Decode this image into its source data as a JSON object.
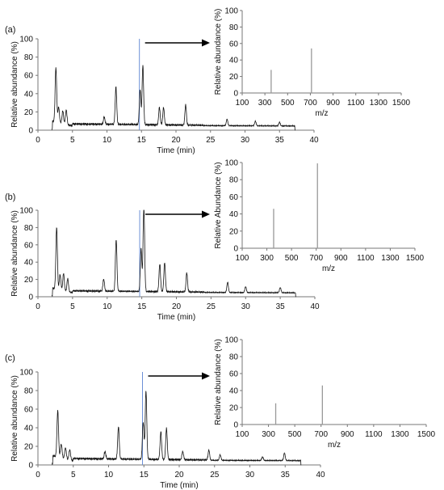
{
  "chart_data": [
    {
      "panel": "(a)",
      "type": "line",
      "xlabel": "Time (min)",
      "ylabel": "Relative abundance (%)",
      "xlim": [
        0,
        40
      ],
      "ylim": [
        0,
        100
      ],
      "xticks": [
        0,
        5,
        10,
        15,
        20,
        25,
        30,
        35,
        40
      ],
      "yticks": [
        0,
        20,
        40,
        60,
        80,
        100
      ],
      "marker_time": 14.7,
      "peaks": [
        {
          "x": 2.6,
          "y": 60
        },
        {
          "x": 3.0,
          "y": 17
        },
        {
          "x": 3.6,
          "y": 14
        },
        {
          "x": 4.1,
          "y": 16
        },
        {
          "x": 9.6,
          "y": 8
        },
        {
          "x": 11.3,
          "y": 41
        },
        {
          "x": 14.8,
          "y": 38
        },
        {
          "x": 15.2,
          "y": 65
        },
        {
          "x": 17.6,
          "y": 19
        },
        {
          "x": 18.2,
          "y": 19
        },
        {
          "x": 21.4,
          "y": 22
        },
        {
          "x": 27.4,
          "y": 7
        },
        {
          "x": 31.5,
          "y": 5
        },
        {
          "x": 35.0,
          "y": 4
        }
      ]
    },
    {
      "panel": "(a)",
      "type": "bar",
      "xlabel": "m/z",
      "ylabel": "Relative abundance (%)",
      "xlim": [
        100,
        1500
      ],
      "ylim": [
        0,
        100
      ],
      "xticks": [
        100,
        300,
        500,
        700,
        900,
        1100,
        1300,
        1500
      ],
      "yticks": [
        0,
        20,
        40,
        60,
        80,
        100
      ],
      "x": [
        355,
        710
      ],
      "values": [
        28,
        54
      ]
    },
    {
      "panel": "(b)",
      "type": "line",
      "xlabel": "Time (min)",
      "ylabel": "Relative abundance (%)",
      "xlim": [
        0,
        40
      ],
      "ylim": [
        0,
        100
      ],
      "xticks": [
        0,
        5,
        10,
        15,
        20,
        25,
        30,
        35,
        40
      ],
      "yticks": [
        0,
        20,
        40,
        60,
        80,
        100
      ],
      "marker_time": 14.7,
      "peaks": [
        {
          "x": 2.7,
          "y": 72
        },
        {
          "x": 3.2,
          "y": 18
        },
        {
          "x": 3.7,
          "y": 20
        },
        {
          "x": 4.3,
          "y": 15
        },
        {
          "x": 9.5,
          "y": 14
        },
        {
          "x": 11.3,
          "y": 60
        },
        {
          "x": 14.9,
          "y": 50
        },
        {
          "x": 15.3,
          "y": 100
        },
        {
          "x": 17.6,
          "y": 32
        },
        {
          "x": 18.3,
          "y": 34
        },
        {
          "x": 21.5,
          "y": 22
        },
        {
          "x": 27.4,
          "y": 12
        },
        {
          "x": 30.0,
          "y": 7
        },
        {
          "x": 35.0,
          "y": 6
        }
      ]
    },
    {
      "panel": "(b)",
      "type": "bar",
      "xlabel": "m/z",
      "ylabel": "Relative Abundance (%)",
      "xlim": [
        100,
        1500
      ],
      "ylim": [
        0,
        100
      ],
      "xticks": [
        100,
        300,
        500,
        700,
        900,
        1100,
        1300,
        1500
      ],
      "yticks": [
        0,
        20,
        40,
        60,
        80,
        100
      ],
      "x": [
        355,
        710
      ],
      "values": [
        46,
        99
      ]
    },
    {
      "panel": "(c)",
      "type": "line",
      "xlabel": "Time (min)",
      "ylabel": "Relative abundance (%)",
      "xlim": [
        0,
        40
      ],
      "ylim": [
        0,
        100
      ],
      "xticks": [
        0,
        5,
        10,
        15,
        20,
        25,
        30,
        35,
        40
      ],
      "yticks": [
        0,
        20,
        40,
        60,
        80,
        100
      ],
      "marker_time": 14.8,
      "peaks": [
        {
          "x": 2.8,
          "y": 50
        },
        {
          "x": 3.3,
          "y": 15
        },
        {
          "x": 3.9,
          "y": 12
        },
        {
          "x": 4.5,
          "y": 11
        },
        {
          "x": 9.5,
          "y": 8
        },
        {
          "x": 11.4,
          "y": 35
        },
        {
          "x": 14.9,
          "y": 40
        },
        {
          "x": 15.3,
          "y": 74
        },
        {
          "x": 17.4,
          "y": 30
        },
        {
          "x": 18.2,
          "y": 34
        },
        {
          "x": 20.5,
          "y": 9
        },
        {
          "x": 24.2,
          "y": 11
        },
        {
          "x": 25.8,
          "y": 6
        },
        {
          "x": 31.8,
          "y": 4
        },
        {
          "x": 34.9,
          "y": 8
        }
      ]
    },
    {
      "panel": "(c)",
      "type": "bar",
      "xlabel": "m/z",
      "ylabel": "Relative abundance (%)",
      "xlim": [
        100,
        1500
      ],
      "ylim": [
        0,
        100
      ],
      "xticks": [
        100,
        300,
        500,
        700,
        900,
        1100,
        1300,
        1500
      ],
      "yticks": [
        0,
        20,
        40,
        60,
        80,
        100
      ],
      "x": [
        355,
        710
      ],
      "values": [
        25,
        46
      ]
    }
  ]
}
